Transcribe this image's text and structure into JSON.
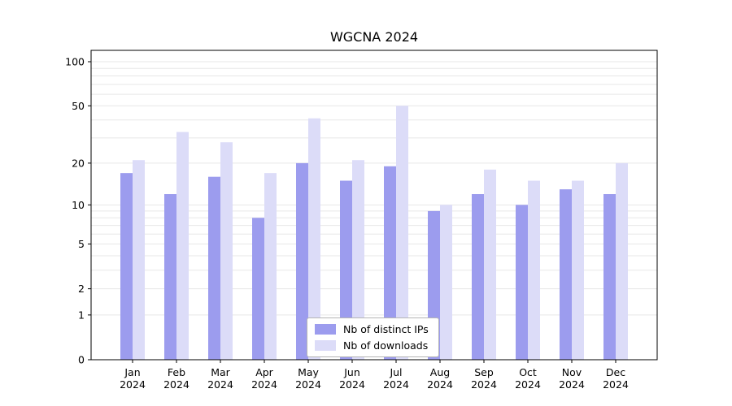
{
  "title": "WGCNA 2024",
  "legend": {
    "items": [
      {
        "label": "Nb of distinct IPs",
        "color": "#9c9cee"
      },
      {
        "label": "Nb of downloads",
        "color": "#dcdcf8"
      }
    ]
  },
  "chart_data": {
    "type": "bar",
    "title": "WGCNA 2024",
    "categories": [
      "Jan",
      "Feb",
      "Mar",
      "Apr",
      "May",
      "Jun",
      "Jul",
      "Aug",
      "Sep",
      "Oct",
      "Nov",
      "Dec"
    ],
    "year": "2024",
    "series": [
      {
        "name": "Nb of distinct IPs",
        "color": "#9c9cee",
        "values": [
          17,
          12,
          16,
          8,
          20,
          15,
          19,
          9,
          12,
          10,
          13,
          12
        ]
      },
      {
        "name": "Nb of downloads",
        "color": "#dcdcf8",
        "values": [
          21,
          33,
          28,
          17,
          41,
          21,
          50,
          10,
          18,
          15,
          15,
          20
        ]
      }
    ],
    "y_scale": "log10(1+v)",
    "ylim": [
      0,
      100
    ],
    "y_ticks": [
      0,
      1,
      2,
      5,
      10,
      20,
      50,
      100
    ],
    "y_gridlines": [
      1,
      2,
      3,
      4,
      5,
      6,
      7,
      8,
      9,
      10,
      20,
      30,
      40,
      50,
      60,
      70,
      80,
      90,
      100
    ],
    "grid_color": "#e7e7e7",
    "axis_color": "#000000",
    "legend_position": "bottom-center-inside"
  }
}
